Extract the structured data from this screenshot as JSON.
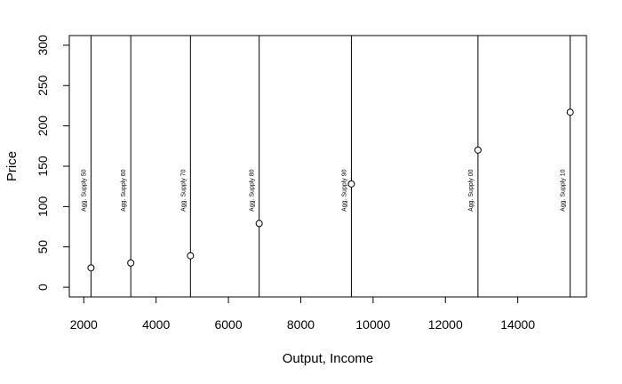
{
  "chart_data": {
    "type": "scatter",
    "title": "",
    "xlabel": "Output, Income",
    "ylabel": "Price",
    "xlim": [
      1600,
      15900
    ],
    "ylim": [
      -12,
      312
    ],
    "xticks": [
      2000,
      4000,
      6000,
      8000,
      10000,
      12000,
      14000
    ],
    "yticks": [
      0,
      50,
      100,
      150,
      200,
      250,
      300
    ],
    "grid": false,
    "points": [
      {
        "x": 2200,
        "y": 24
      },
      {
        "x": 3300,
        "y": 30
      },
      {
        "x": 4950,
        "y": 39
      },
      {
        "x": 6850,
        "y": 79
      },
      {
        "x": 9400,
        "y": 128
      },
      {
        "x": 12900,
        "y": 170
      },
      {
        "x": 15450,
        "y": 217
      }
    ],
    "vertical_lines": [
      {
        "x": 2200,
        "label": "Agg. Supply 50"
      },
      {
        "x": 3300,
        "label": "Agg. Supply 60"
      },
      {
        "x": 4950,
        "label": "Agg. Supply 70"
      },
      {
        "x": 6850,
        "label": "Agg. Supply 80"
      },
      {
        "x": 9400,
        "label": "Agg. Supply 90"
      },
      {
        "x": 12900,
        "label": "Agg. Supply 00"
      },
      {
        "x": 15450,
        "label": "Agg. Supply 10"
      }
    ],
    "annotation_y": 120
  }
}
